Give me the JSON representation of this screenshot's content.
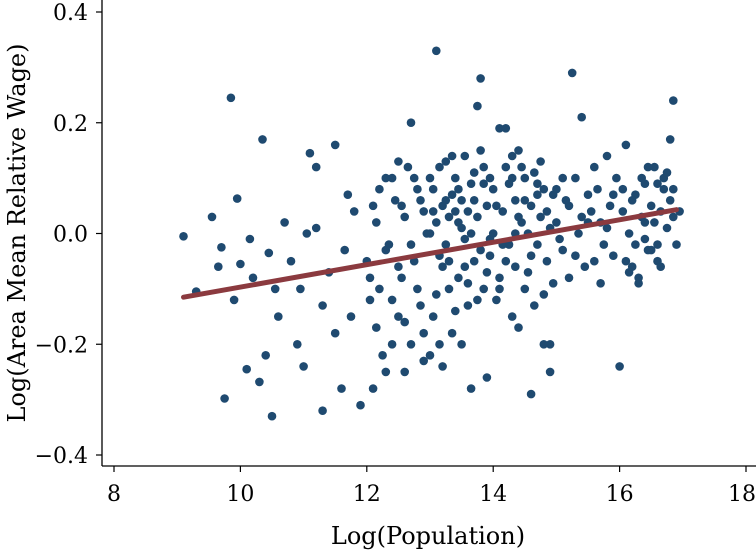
{
  "chart_data": {
    "type": "scatter",
    "title": "",
    "xlabel": "Log(Population)",
    "ylabel": "Log(Area Mean Relative Wage)",
    "xlim": [
      8,
      18
    ],
    "ylim": [
      -0.4,
      0.4
    ],
    "xticks": [
      8,
      10,
      12,
      14,
      16,
      18
    ],
    "xtick_labels": [
      "8",
      "10",
      "12",
      "14",
      "16",
      "18"
    ],
    "yticks": [
      0.4,
      0.2,
      0.0,
      -0.2,
      -0.4
    ],
    "ytick_labels": [
      "0.4",
      "0.2",
      "0.0",
      "−0.2",
      "−0.4"
    ],
    "grid": false,
    "legend": "none",
    "colors": {
      "points": "#1f4a70",
      "fit_line": "#8b3a3f"
    },
    "fit_line": {
      "x": [
        9.1,
        16.9
      ],
      "y": [
        -0.115,
        0.043
      ]
    },
    "series": [
      {
        "points": [
          [
            9.1,
            -0.005
          ],
          [
            9.3,
            -0.105
          ],
          [
            9.55,
            0.03
          ],
          [
            9.7,
            -0.025
          ],
          [
            9.85,
            0.245
          ],
          [
            9.75,
            -0.298
          ],
          [
            9.95,
            0.063
          ],
          [
            10.0,
            -0.055
          ],
          [
            9.65,
            -0.06
          ],
          [
            9.9,
            -0.12
          ],
          [
            10.1,
            -0.245
          ],
          [
            10.3,
            -0.268
          ],
          [
            10.35,
            0.17
          ],
          [
            10.5,
            -0.33
          ],
          [
            10.2,
            -0.08
          ],
          [
            10.4,
            -0.22
          ],
          [
            10.6,
            -0.15
          ],
          [
            10.15,
            -0.01
          ],
          [
            10.45,
            -0.035
          ],
          [
            10.55,
            -0.1
          ],
          [
            10.7,
            0.02
          ],
          [
            10.8,
            -0.05
          ],
          [
            10.9,
            -0.2
          ],
          [
            11.0,
            -0.24
          ],
          [
            11.1,
            0.145
          ],
          [
            11.2,
            0.12
          ],
          [
            11.3,
            -0.32
          ],
          [
            11.5,
            0.16
          ],
          [
            11.6,
            -0.28
          ],
          [
            11.2,
            0.01
          ],
          [
            11.4,
            -0.07
          ],
          [
            11.7,
            0.07
          ],
          [
            11.9,
            -0.31
          ],
          [
            11.8,
            0.04
          ],
          [
            11.5,
            -0.18
          ],
          [
            11.3,
            -0.13
          ],
          [
            10.95,
            -0.1
          ],
          [
            11.65,
            -0.03
          ],
          [
            11.75,
            -0.15
          ],
          [
            11.05,
            0.0
          ],
          [
            12.0,
            -0.05
          ],
          [
            12.2,
            -0.1
          ],
          [
            12.5,
            -0.15
          ],
          [
            12.3,
            0.1
          ],
          [
            12.7,
            0.2
          ],
          [
            12.6,
            -0.25
          ],
          [
            12.1,
            0.05
          ],
          [
            12.4,
            -0.2
          ],
          [
            12.8,
            0.08
          ],
          [
            12.9,
            -0.18
          ],
          [
            12.05,
            -0.12
          ],
          [
            12.15,
            0.02
          ],
          [
            12.25,
            -0.22
          ],
          [
            12.35,
            -0.02
          ],
          [
            12.45,
            0.06
          ],
          [
            12.55,
            -0.08
          ],
          [
            12.65,
            0.12
          ],
          [
            12.75,
            -0.05
          ],
          [
            12.85,
            -0.13
          ],
          [
            12.95,
            0.0
          ],
          [
            12.1,
            -0.28
          ],
          [
            12.3,
            -0.25
          ],
          [
            12.5,
            -0.06
          ],
          [
            12.7,
            -0.02
          ],
          [
            12.9,
            0.04
          ],
          [
            12.2,
            0.08
          ],
          [
            12.4,
            0.1
          ],
          [
            12.6,
            0.03
          ],
          [
            12.8,
            -0.1
          ],
          [
            12.05,
            -0.08
          ],
          [
            12.5,
            0.13
          ],
          [
            12.4,
            -0.12
          ],
          [
            12.6,
            -0.16
          ],
          [
            12.7,
            -0.2
          ],
          [
            12.9,
            -0.23
          ],
          [
            12.3,
            -0.03
          ],
          [
            12.15,
            -0.17
          ],
          [
            12.85,
            0.06
          ],
          [
            12.75,
            0.1
          ],
          [
            12.55,
            0.05
          ],
          [
            13.0,
            0.0
          ],
          [
            13.1,
            0.33
          ],
          [
            13.2,
            0.05
          ],
          [
            13.3,
            -0.1
          ],
          [
            13.4,
            0.1
          ],
          [
            13.5,
            -0.2
          ],
          [
            13.6,
            0.04
          ],
          [
            13.7,
            -0.05
          ],
          [
            13.8,
            0.28
          ],
          [
            13.9,
            -0.26
          ],
          [
            13.05,
            -0.15
          ],
          [
            13.15,
            0.12
          ],
          [
            13.25,
            -0.02
          ],
          [
            13.35,
            0.07
          ],
          [
            13.45,
            -0.08
          ],
          [
            13.55,
            0.14
          ],
          [
            13.65,
            0.0
          ],
          [
            13.75,
            -0.12
          ],
          [
            13.85,
            0.09
          ],
          [
            13.95,
            -0.04
          ],
          [
            13.0,
            -0.22
          ],
          [
            13.1,
            0.02
          ],
          [
            13.2,
            -0.06
          ],
          [
            13.3,
            0.03
          ],
          [
            13.4,
            -0.14
          ],
          [
            13.5,
            0.06
          ],
          [
            13.6,
            -0.09
          ],
          [
            13.7,
            0.11
          ],
          [
            13.8,
            -0.03
          ],
          [
            13.9,
            0.05
          ],
          [
            13.05,
            0.08
          ],
          [
            13.15,
            -0.04
          ],
          [
            13.25,
            0.13
          ],
          [
            13.35,
            -0.18
          ],
          [
            13.45,
            0.02
          ],
          [
            13.55,
            -0.06
          ],
          [
            13.65,
            0.09
          ],
          [
            13.75,
            0.03
          ],
          [
            13.85,
            -0.1
          ],
          [
            13.95,
            0.1
          ],
          [
            13.2,
            -0.24
          ],
          [
            13.4,
            0.04
          ],
          [
            13.6,
            -0.13
          ],
          [
            13.8,
            0.15
          ],
          [
            13.1,
            -0.11
          ],
          [
            13.3,
            -0.05
          ],
          [
            13.5,
            0.01
          ],
          [
            13.7,
            0.06
          ],
          [
            13.9,
            -0.07
          ],
          [
            13.0,
            0.1
          ],
          [
            13.75,
            0.23
          ],
          [
            13.65,
            -0.28
          ],
          [
            13.35,
            0.14
          ],
          [
            13.55,
            -0.01
          ],
          [
            13.85,
            0.12
          ],
          [
            13.15,
            -0.2
          ],
          [
            13.45,
            0.08
          ],
          [
            13.25,
            0.06
          ],
          [
            13.95,
            -0.01
          ],
          [
            13.05,
            0.04
          ],
          [
            14.0,
            0.0
          ],
          [
            14.1,
            0.19
          ],
          [
            14.2,
            -0.05
          ],
          [
            14.3,
            0.1
          ],
          [
            14.4,
            0.15
          ],
          [
            14.5,
            -0.1
          ],
          [
            14.6,
            0.05
          ],
          [
            14.7,
            -0.02
          ],
          [
            14.8,
            0.08
          ],
          [
            14.9,
            -0.2
          ],
          [
            14.05,
            -0.12
          ],
          [
            14.15,
            0.04
          ],
          [
            14.25,
            -0.02
          ],
          [
            14.35,
            0.06
          ],
          [
            14.45,
            0.02
          ],
          [
            14.55,
            -0.07
          ],
          [
            14.65,
            0.11
          ],
          [
            14.75,
            0.03
          ],
          [
            14.85,
            -0.05
          ],
          [
            14.95,
            0.07
          ],
          [
            14.0,
            0.08
          ],
          [
            14.1,
            -0.08
          ],
          [
            14.2,
            0.12
          ],
          [
            14.3,
            -0.15
          ],
          [
            14.4,
            0.03
          ],
          [
            14.5,
            0.06
          ],
          [
            14.6,
            -0.04
          ],
          [
            14.7,
            0.09
          ],
          [
            14.8,
            -0.11
          ],
          [
            14.9,
            0.01
          ],
          [
            14.05,
            0.05
          ],
          [
            14.15,
            -0.02
          ],
          [
            14.25,
            0.09
          ],
          [
            14.35,
            -0.06
          ],
          [
            14.45,
            0.12
          ],
          [
            14.55,
            0.0
          ],
          [
            14.65,
            -0.13
          ],
          [
            14.75,
            0.13
          ],
          [
            14.85,
            0.04
          ],
          [
            14.95,
            -0.09
          ],
          [
            14.2,
            0.19
          ],
          [
            14.4,
            -0.17
          ],
          [
            14.6,
            -0.29
          ],
          [
            14.8,
            -0.2
          ],
          [
            14.9,
            -0.25
          ],
          [
            14.3,
            0.14
          ],
          [
            14.5,
            0.1
          ],
          [
            14.7,
            0.07
          ],
          [
            14.1,
            -0.1
          ],
          [
            14.35,
            0.0
          ],
          [
            15.0,
            0.02
          ],
          [
            15.1,
            -0.03
          ],
          [
            15.2,
            0.05
          ],
          [
            15.3,
            0.1
          ],
          [
            15.4,
            0.21
          ],
          [
            15.25,
            0.29
          ],
          [
            15.5,
            0.07
          ],
          [
            15.6,
            -0.05
          ],
          [
            15.7,
            0.02
          ],
          [
            15.8,
            0.14
          ],
          [
            15.05,
            -0.01
          ],
          [
            15.15,
            0.06
          ],
          [
            15.35,
            0.0
          ],
          [
            15.45,
            -0.06
          ],
          [
            15.55,
            0.04
          ],
          [
            15.65,
            0.08
          ],
          [
            15.75,
            -0.02
          ],
          [
            15.85,
            0.05
          ],
          [
            15.95,
            0.1
          ],
          [
            15.9,
            -0.04
          ],
          [
            15.0,
            0.08
          ],
          [
            15.2,
            -0.08
          ],
          [
            15.4,
            0.03
          ],
          [
            15.6,
            0.12
          ],
          [
            15.8,
            0.01
          ],
          [
            15.1,
            0.1
          ],
          [
            15.3,
            -0.04
          ],
          [
            15.5,
            0.02
          ],
          [
            15.7,
            -0.09
          ],
          [
            15.9,
            0.07
          ],
          [
            16.0,
            -0.24
          ],
          [
            16.05,
            0.04
          ],
          [
            16.1,
            0.16
          ],
          [
            16.15,
            0.0
          ],
          [
            16.2,
            -0.06
          ],
          [
            16.25,
            0.07
          ],
          [
            16.3,
            -0.09
          ],
          [
            16.35,
            0.1
          ],
          [
            16.4,
            0.02
          ],
          [
            16.45,
            -0.03
          ],
          [
            16.5,
            0.05
          ],
          [
            16.55,
            0.12
          ],
          [
            16.6,
            -0.02
          ],
          [
            16.65,
            0.04
          ],
          [
            16.7,
            0.08
          ],
          [
            16.75,
            0.01
          ],
          [
            16.8,
            0.17
          ],
          [
            16.85,
            0.24
          ],
          [
            16.9,
            -0.02
          ],
          [
            16.85,
            0.03
          ],
          [
            16.3,
            -0.08
          ],
          [
            16.4,
            0.09
          ],
          [
            16.6,
            -0.05
          ],
          [
            16.7,
            0.1
          ],
          [
            16.8,
            0.06
          ],
          [
            16.1,
            -0.05
          ],
          [
            16.2,
            0.06
          ],
          [
            16.5,
            -0.03
          ],
          [
            16.55,
            0.02
          ],
          [
            16.75,
            0.11
          ],
          [
            16.15,
            -0.07
          ],
          [
            16.35,
            0.03
          ],
          [
            16.45,
            0.12
          ],
          [
            16.65,
            -0.06
          ],
          [
            16.85,
            0.08
          ],
          [
            16.05,
            0.08
          ],
          [
            16.25,
            -0.02
          ],
          [
            16.95,
            0.04
          ],
          [
            16.6,
            0.09
          ],
          [
            16.4,
            -0.01
          ]
        ]
      }
    ]
  }
}
